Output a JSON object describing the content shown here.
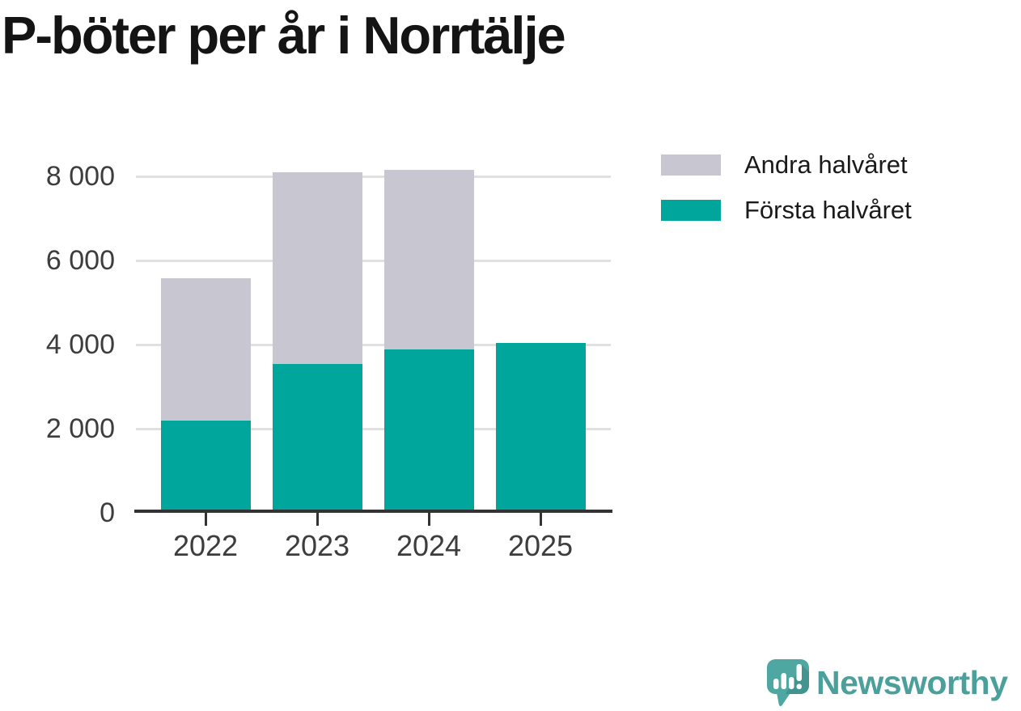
{
  "title": "P-böter per år i Norrtälje",
  "legend": {
    "items": [
      {
        "label": "Andra halvåret",
        "color": "#C8C6D0"
      },
      {
        "label": "Första halvåret",
        "color": "#00A59B"
      }
    ]
  },
  "chart_data": {
    "type": "bar",
    "stacked": true,
    "title": "P-böter per år i Norrtälje",
    "categories": [
      "2022",
      "2023",
      "2024",
      "2025"
    ],
    "series": [
      {
        "name": "Första halvåret",
        "color": "#00A59B",
        "values": [
          2200,
          3540,
          3890,
          4040
        ]
      },
      {
        "name": "Andra halvåret",
        "color": "#C8C6D0",
        "values": [
          3380,
          4560,
          4260,
          0
        ]
      }
    ],
    "totals": [
      5580,
      8100,
      8150,
      4040
    ],
    "xlabel": "",
    "ylabel": "",
    "ylim": [
      0,
      8300
    ],
    "yticks": [
      0,
      2000,
      4000,
      6000,
      8000
    ],
    "ytick_labels": [
      "0",
      "2 000",
      "4 000",
      "6 000",
      "8 000"
    ],
    "grid": "horizontal-only",
    "legend_position": "top-right"
  },
  "footer": {
    "brand": "Newsworthy",
    "brand_color": "#4BA09C",
    "logo_icon": "newsworthy-speech-bubble-bar-chart-icon"
  },
  "colors": {
    "background": "#FFFFFF",
    "axis": "#333333",
    "gridline": "#E0E0E0",
    "tick_label": "#3D3D3D",
    "title_text": "#141414"
  }
}
